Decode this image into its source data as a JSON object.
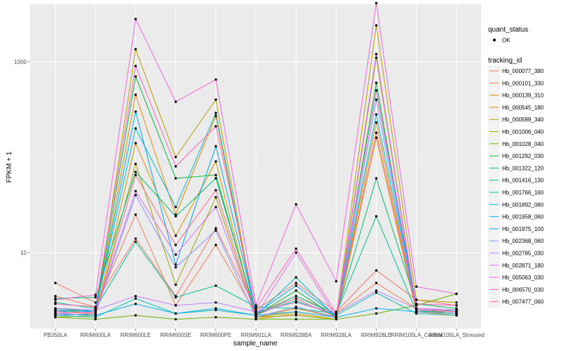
{
  "chart_data": {
    "type": "line",
    "xlabel": "sample_name",
    "ylabel": "FPKM + 1",
    "y_scale": "log10",
    "ylim": [
      1.6,
      4000
    ],
    "y_ticks": [
      10,
      1000
    ],
    "grid": true,
    "legend_position": "right",
    "categories": [
      "PB350LA",
      "RRIM600LA",
      "RRIM600LE",
      "RRIM600SE",
      "RRIM600PE",
      "RRIM901LA",
      "RRIM928BA",
      "RRIM928LA",
      "RRIM928LE",
      "RRIM105LA_Control",
      "RRIM105LA_Stressed"
    ],
    "point_legend": {
      "title": "quant_status",
      "label": "OK"
    },
    "line_legend_title": "tracking_id",
    "series": [
      {
        "name": "Hb_000077_380",
        "color": "#F8766D",
        "values": [
          4.8,
          3.0,
          14,
          3.5,
          18,
          2.5,
          4.8,
          2.4,
          6.5,
          3.2,
          2.8
        ]
      },
      {
        "name": "Hb_000101_330",
        "color": "#F07E4E",
        "values": [
          3.5,
          2.7,
          25,
          2.8,
          12,
          2.3,
          3.5,
          2.3,
          4.8,
          2.6,
          2.5
        ]
      },
      {
        "name": "Hb_000139_310",
        "color": "#E58700",
        "values": [
          2.5,
          2.3,
          450,
          25,
          270,
          2.1,
          2.6,
          2.1,
          230,
          2.4,
          2.3
        ]
      },
      {
        "name": "Hb_000545_180",
        "color": "#D69100",
        "values": [
          2.3,
          2.2,
          140,
          15,
          90,
          2.0,
          2.3,
          2.0,
          160,
          2.4,
          2.2
        ]
      },
      {
        "name": "Hb_000589_340",
        "color": "#B79F00",
        "values": [
          2.2,
          2.3,
          1350,
          100,
          400,
          2.1,
          2.4,
          2.1,
          2400,
          3.2,
          3.0
        ]
      },
      {
        "name": "Hb_001006_040",
        "color": "#9DA700",
        "values": [
          2.1,
          2.2,
          85,
          4.6,
          38,
          2.1,
          2.2,
          2.0,
          1100,
          2.5,
          2.4
        ]
      },
      {
        "name": "Hb_001028_040",
        "color": "#69B100",
        "values": [
          2.1,
          2.0,
          2.2,
          2.0,
          2.1,
          2.0,
          2.0,
          2.0,
          2.3,
          2.8,
          3.7
        ]
      },
      {
        "name": "Hb_001292_030",
        "color": "#00BA38",
        "values": [
          2.6,
          2.4,
          700,
          60,
          65,
          2.2,
          4.0,
          2.1,
          600,
          2.5,
          2.3
        ]
      },
      {
        "name": "Hb_001322_120",
        "color": "#00BE6C",
        "values": [
          3.3,
          3.4,
          70,
          24,
          60,
          2.3,
          3.1,
          2.2,
          60,
          2.9,
          2.6
        ]
      },
      {
        "name": "Hb_001416_130",
        "color": "#00BF91",
        "values": [
          3.0,
          2.6,
          13,
          3.4,
          4.5,
          2.7,
          2.6,
          2.3,
          24,
          2.4,
          2.5
        ]
      },
      {
        "name": "Hb_001766_160",
        "color": "#00BFB3",
        "values": [
          2.2,
          2.1,
          3.3,
          2.3,
          2.5,
          2.2,
          3.5,
          2.2,
          3.8,
          2.3,
          2.2
        ]
      },
      {
        "name": "Hb_001892_080",
        "color": "#00BCD1",
        "values": [
          2.4,
          2.5,
          200,
          30,
          290,
          2.2,
          5.5,
          2.1,
          280,
          2.6,
          2.4
        ]
      },
      {
        "name": "Hb_001958_060",
        "color": "#00B4EF",
        "values": [
          2.3,
          2.2,
          2.9,
          2.3,
          2.6,
          2.2,
          2.4,
          2.1,
          2.6,
          2.4,
          2.3
        ]
      },
      {
        "name": "Hb_001975_100",
        "color": "#00A5FF",
        "values": [
          2.5,
          2.4,
          300,
          7.5,
          130,
          2.3,
          4.5,
          2.2,
          500,
          2.5,
          2.4
        ]
      },
      {
        "name": "Hb_002368_060",
        "color": "#7F96FF",
        "values": [
          2.2,
          2.3,
          40,
          7.0,
          17,
          2.1,
          2.7,
          2.1,
          400,
          2.4,
          2.3
        ]
      },
      {
        "name": "Hb_002785_030",
        "color": "#BC81FF",
        "values": [
          2.6,
          2.5,
          3.5,
          2.8,
          3.0,
          2.4,
          3.0,
          2.3,
          4.0,
          2.6,
          2.5
        ]
      },
      {
        "name": "Hb_002871_180",
        "color": "#E26EF7",
        "values": [
          2.3,
          2.4,
          44,
          9.5,
          30,
          2.2,
          10,
          2.1,
          1200,
          2.6,
          2.4
        ]
      },
      {
        "name": "Hb_005063_030",
        "color": "#F863DF",
        "values": [
          3.2,
          3.6,
          2800,
          380,
          650,
          2.8,
          32,
          5.0,
          4100,
          4.4,
          3.7
        ]
      },
      {
        "name": "Hb_006570_030",
        "color": "#FF62BC",
        "values": [
          2.9,
          2.7,
          900,
          80,
          210,
          2.6,
          11,
          2.3,
          500,
          2.9,
          2.8
        ]
      },
      {
        "name": "Hb_007477_060",
        "color": "#FF6C90",
        "values": [
          2.4,
          2.3,
          65,
          12,
          45,
          2.2,
          3.3,
          2.1,
          180,
          2.5,
          2.4
        ]
      }
    ]
  }
}
